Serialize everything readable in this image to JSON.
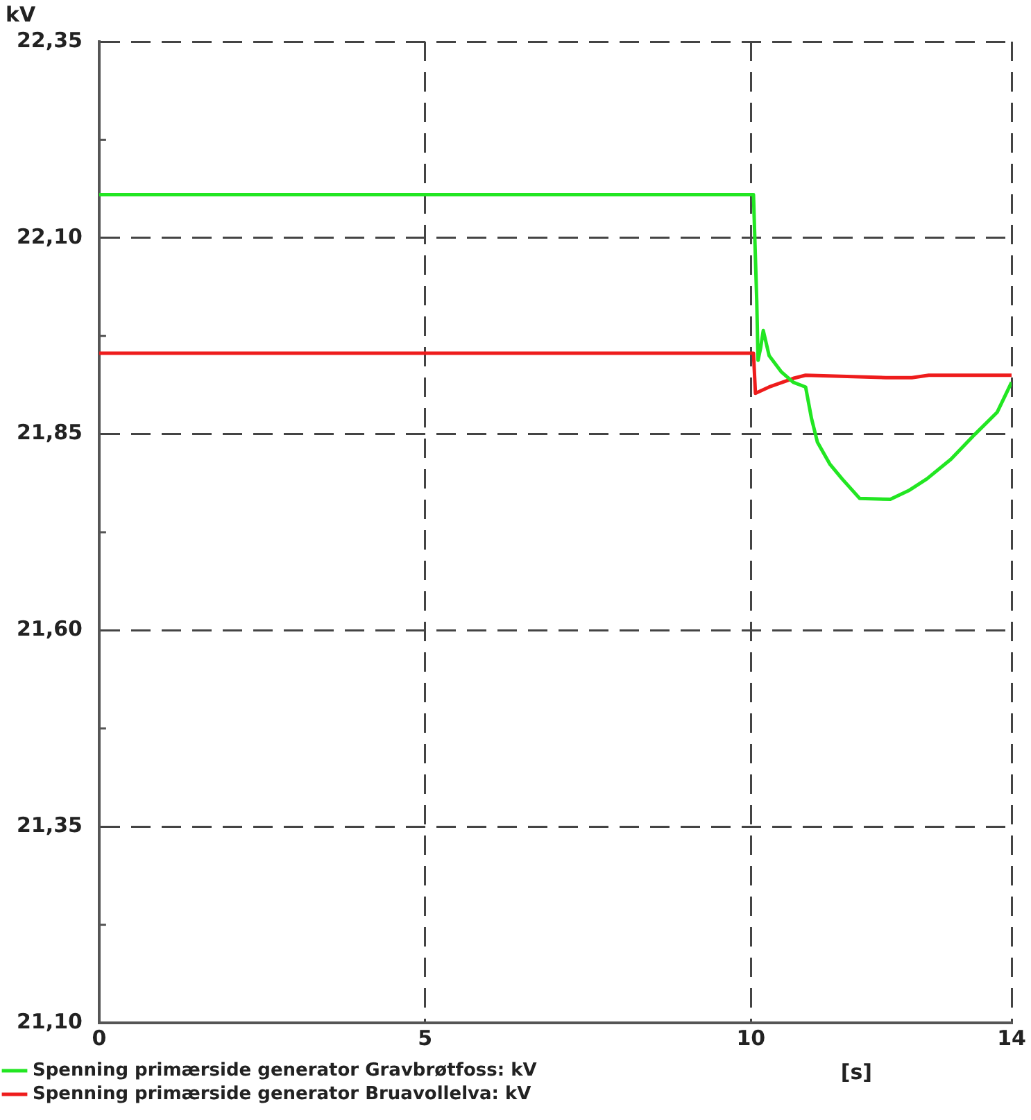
{
  "chart_data": {
    "type": "line",
    "ylabel": "kV",
    "xlabel": "[s]",
    "xlim": [
      0,
      14
    ],
    "xticks": [
      0,
      5,
      10,
      14
    ],
    "ylim": [
      21.1,
      22.35
    ],
    "yticks": [
      {
        "value": 21.1,
        "label": "21,10"
      },
      {
        "value": 21.35,
        "label": "21,35"
      },
      {
        "value": 21.6,
        "label": "21,60"
      },
      {
        "value": 21.85,
        "label": "21,85"
      },
      {
        "value": 22.1,
        "label": "22,10"
      },
      {
        "value": 22.35,
        "label": "22,35"
      }
    ],
    "grid": true,
    "legend": "bottom",
    "marker": "none",
    "line_style": "solid",
    "series": [
      {
        "name": "Spenning primærside generator Gravbrøtfoss: kV",
        "color": "#22e622",
        "x": [
          0,
          10.04,
          10.09,
          10.11,
          10.15,
          10.19,
          10.28,
          10.47,
          10.65,
          10.84,
          10.93,
          11.02,
          11.21,
          11.4,
          11.67,
          12.14,
          12.42,
          12.7,
          13.07,
          13.44,
          13.78,
          14
        ],
        "values": [
          22.155,
          22.155,
          22.02,
          21.944,
          21.96,
          21.982,
          21.95,
          21.929,
          21.916,
          21.91,
          21.87,
          21.84,
          21.812,
          21.793,
          21.768,
          21.767,
          21.778,
          21.793,
          21.818,
          21.85,
          21.878,
          21.916
        ]
      },
      {
        "name": "Spenning primærside generator Bruavollelva: kV",
        "color": "#ee1c1c",
        "x": [
          0,
          10.04,
          10.07,
          10.28,
          10.65,
          10.84,
          12.07,
          12.47,
          12.73,
          14
        ],
        "values": [
          21.953,
          21.953,
          21.902,
          21.91,
          21.921,
          21.925,
          21.922,
          21.922,
          21.925,
          21.925
        ]
      }
    ]
  }
}
